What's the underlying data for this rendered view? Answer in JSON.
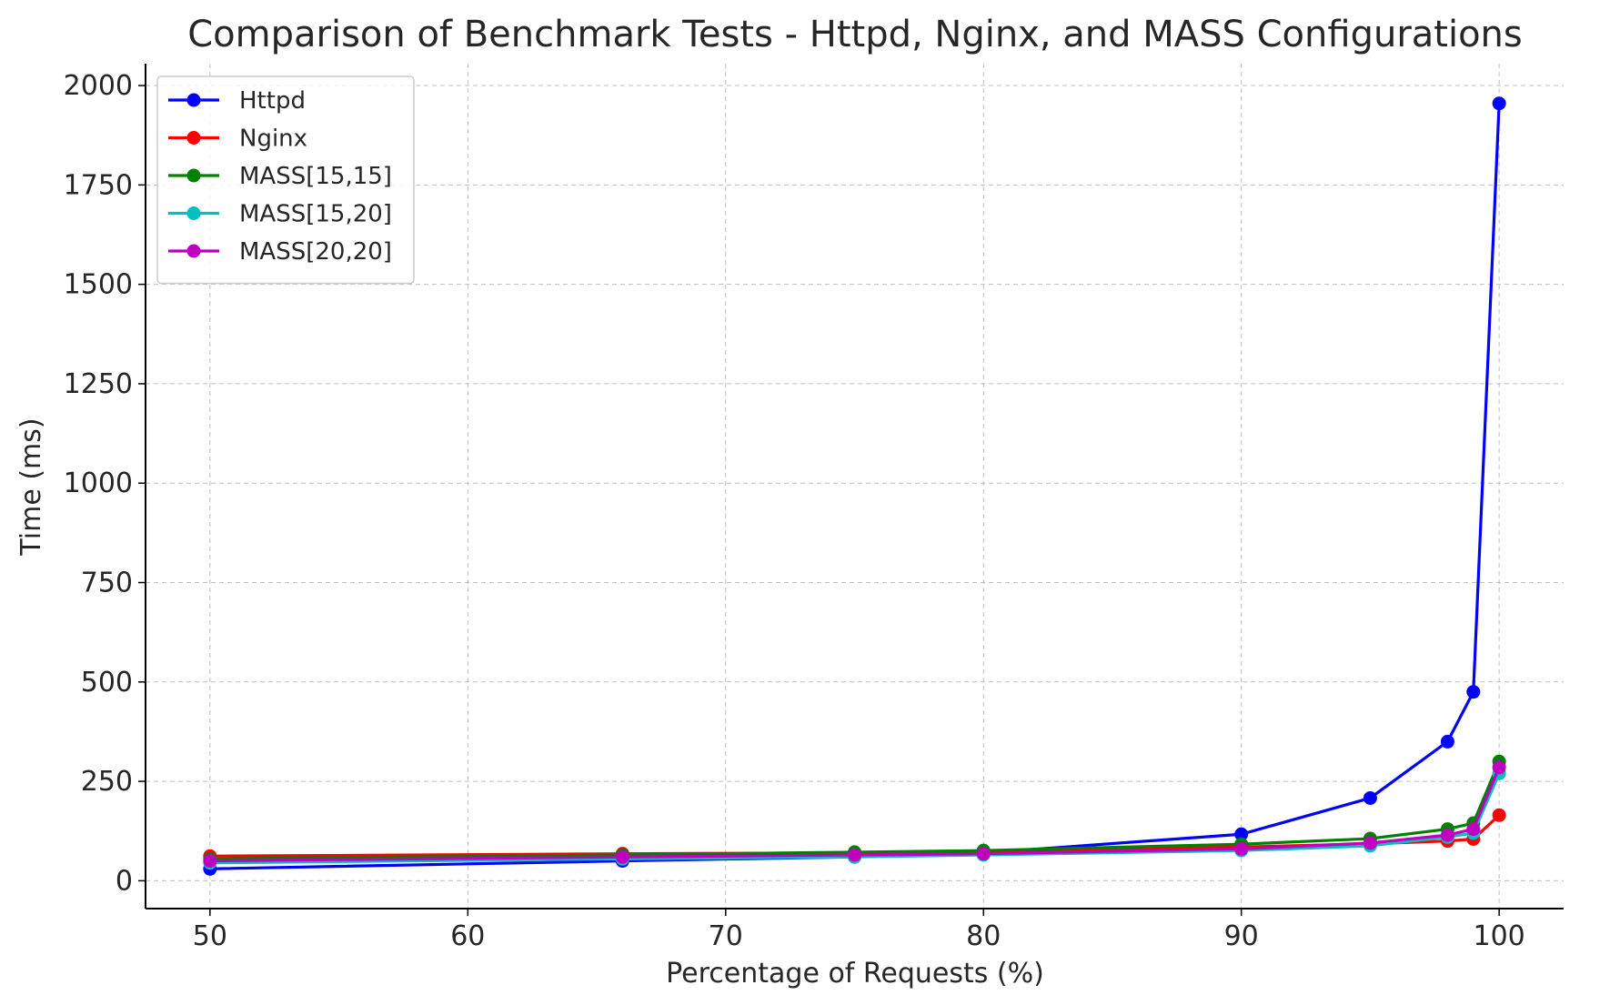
{
  "chart_data": {
    "type": "line",
    "title": "Comparison of Benchmark Tests - Httpd, Nginx, and MASS Configurations",
    "xlabel": "Percentage of Requests (%)",
    "ylabel": "Time (ms)",
    "x": [
      50,
      66,
      75,
      80,
      90,
      95,
      98,
      99,
      100
    ],
    "xlim": [
      47.5,
      102.5
    ],
    "ylim": [
      -70,
      2055
    ],
    "xticks": [
      50,
      60,
      70,
      80,
      90,
      100
    ],
    "yticks": [
      0,
      250,
      500,
      750,
      1000,
      1250,
      1500,
      1750,
      2000
    ],
    "grid": true,
    "legend_position": "top-left",
    "series": [
      {
        "name": "Httpd",
        "color": "#0000ff",
        "values": [
          30,
          50,
          60,
          70,
          117,
          208,
          350,
          475,
          1955
        ]
      },
      {
        "name": "Nginx",
        "color": "#ff0000",
        "values": [
          62,
          68,
          70,
          74,
          85,
          93,
          100,
          105,
          165
        ]
      },
      {
        "name": "MASS[15,15]",
        "color": "#008000",
        "values": [
          55,
          65,
          72,
          76,
          92,
          106,
          130,
          145,
          300
        ]
      },
      {
        "name": "MASS[15,20]",
        "color": "#00bfbf",
        "values": [
          45,
          55,
          60,
          65,
          76,
          88,
          110,
          120,
          270
        ]
      },
      {
        "name": "MASS[20,20]",
        "color": "#bf00bf",
        "values": [
          50,
          60,
          65,
          68,
          80,
          95,
          115,
          130,
          285
        ]
      }
    ]
  }
}
